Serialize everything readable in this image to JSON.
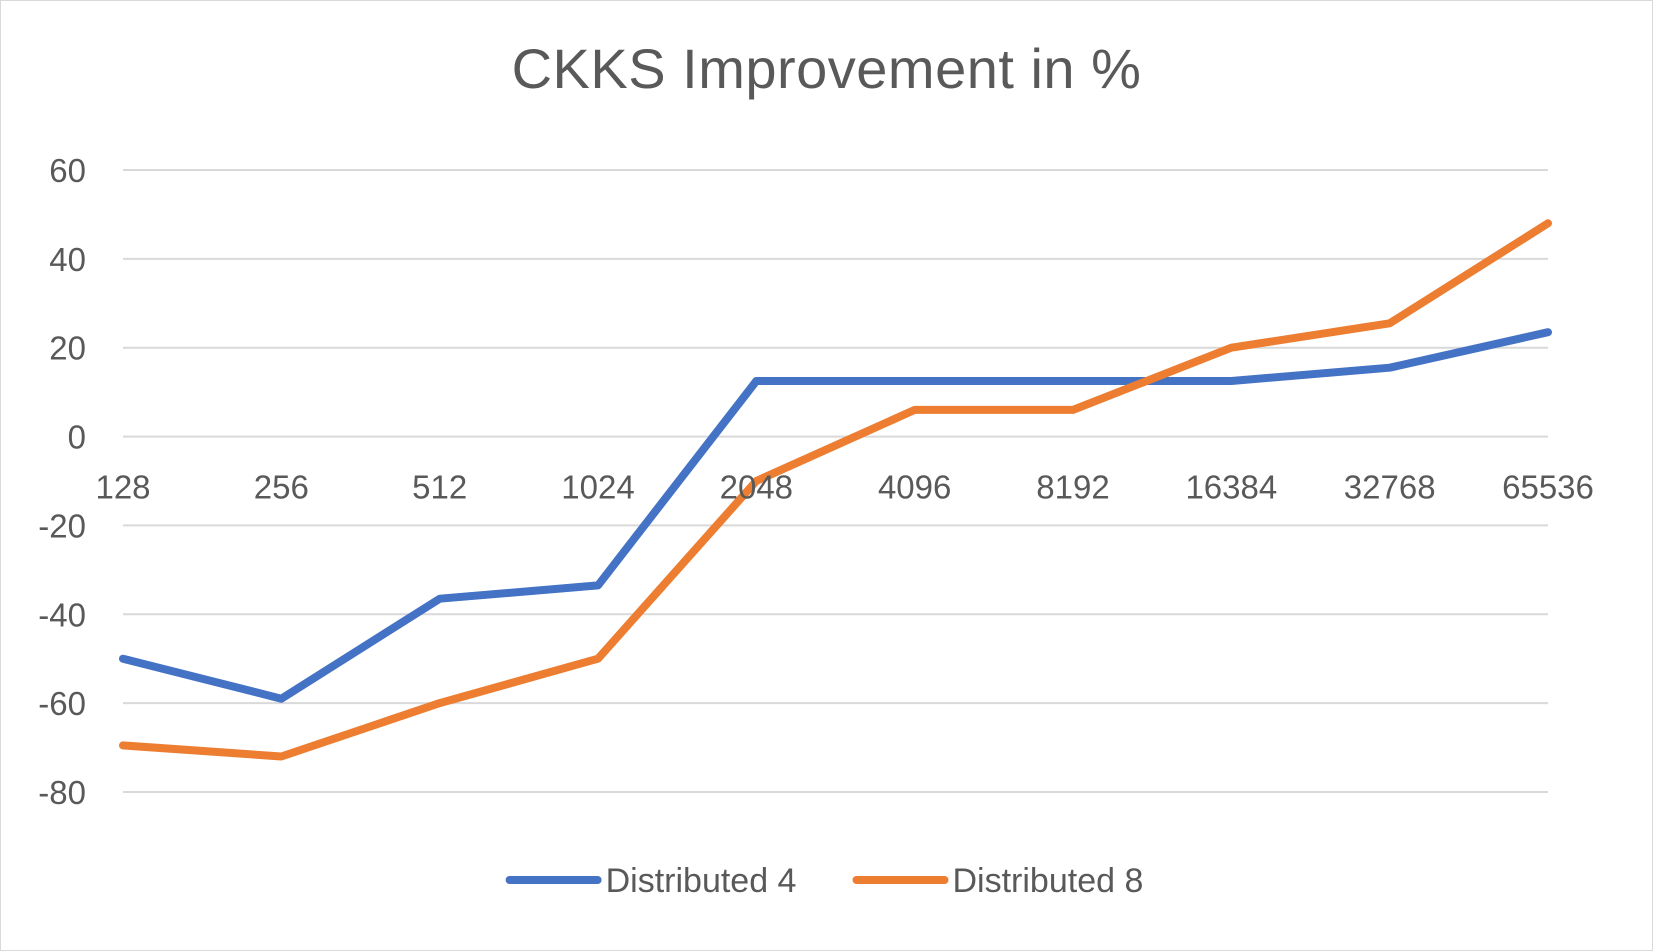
{
  "chart_data": {
    "type": "line",
    "title": "CKKS Improvement in %",
    "xlabel": "",
    "ylabel": "",
    "categories": [
      "128",
      "256",
      "512",
      "1024",
      "2048",
      "4096",
      "8192",
      "16384",
      "32768",
      "65536"
    ],
    "y_ticks": [
      60,
      40,
      20,
      0,
      -20,
      -40,
      -60,
      -80
    ],
    "y_tick_labels": [
      "60",
      "40",
      "20",
      "0",
      "-20",
      "-40",
      "-60",
      "-80"
    ],
    "ylim": [
      -80,
      60
    ],
    "grid": true,
    "legend_position": "bottom",
    "series": [
      {
        "name": "Distributed 4",
        "color": "#4472c4",
        "values": [
          -50,
          -59,
          -36.5,
          -33.5,
          12.5,
          12.5,
          12.5,
          12.5,
          15.5,
          23.5
        ]
      },
      {
        "name": "Distributed 8",
        "color": "#ed7d31",
        "values": [
          -69.5,
          -72,
          -60,
          -50,
          -10,
          6,
          6,
          20,
          25.5,
          48
        ]
      }
    ]
  }
}
